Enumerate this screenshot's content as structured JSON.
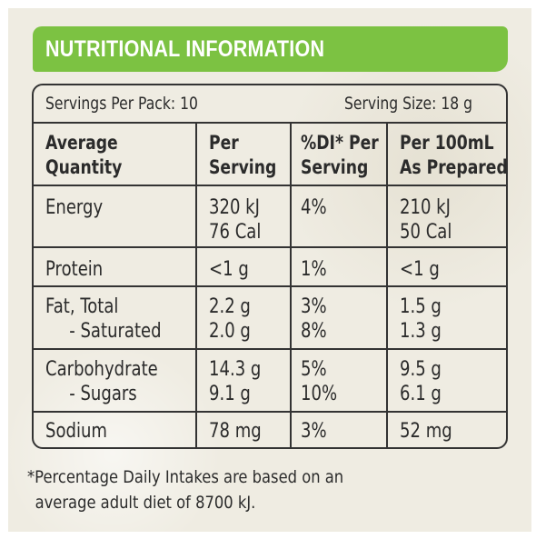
{
  "title": "NUTRITIONAL INFORMATION",
  "servings_per_pack": "Servings Per Pack: 10",
  "serving_size": "Serving Size: 18 g",
  "headers": {
    "c1": [
      "Average",
      "Quantity"
    ],
    "c2": [
      "Per",
      "Serving"
    ],
    "c3": [
      "%DI* Per",
      "Serving"
    ],
    "c4": [
      "Per 100mL",
      "As Prepared"
    ]
  },
  "rows": [
    {
      "name": [
        "Energy"
      ],
      "per_serving": [
        "320 kJ",
        "76 Cal"
      ],
      "di": [
        "4%"
      ],
      "per_100ml": [
        "210 kJ",
        "50 Cal"
      ]
    },
    {
      "name": [
        "Protein"
      ],
      "per_serving": [
        "<1 g"
      ],
      "di": [
        "1%"
      ],
      "per_100ml": [
        "<1 g"
      ]
    },
    {
      "name": [
        "Fat, Total",
        "- Saturated"
      ],
      "per_serving": [
        "2.2 g",
        "2.0 g"
      ],
      "di": [
        "3%",
        "8%"
      ],
      "per_100ml": [
        "1.5 g",
        "1.3 g"
      ]
    },
    {
      "name": [
        "Carbohydrate",
        "- Sugars"
      ],
      "per_serving": [
        "14.3 g",
        "9.1 g"
      ],
      "di": [
        "5%",
        "10%"
      ],
      "per_100ml": [
        "9.5 g",
        "6.1 g"
      ]
    },
    {
      "name": [
        "Sodium"
      ],
      "per_serving": [
        "78 mg"
      ],
      "di": [
        "3%"
      ],
      "per_100ml": [
        "52 mg"
      ]
    }
  ],
  "footnote": [
    "*Percentage Daily Intakes are based on an",
    "average adult diet of 8700 kJ."
  ],
  "colors": {
    "banner": "#7cc242",
    "background": "#efece2",
    "ink": "#2b2b2b"
  }
}
